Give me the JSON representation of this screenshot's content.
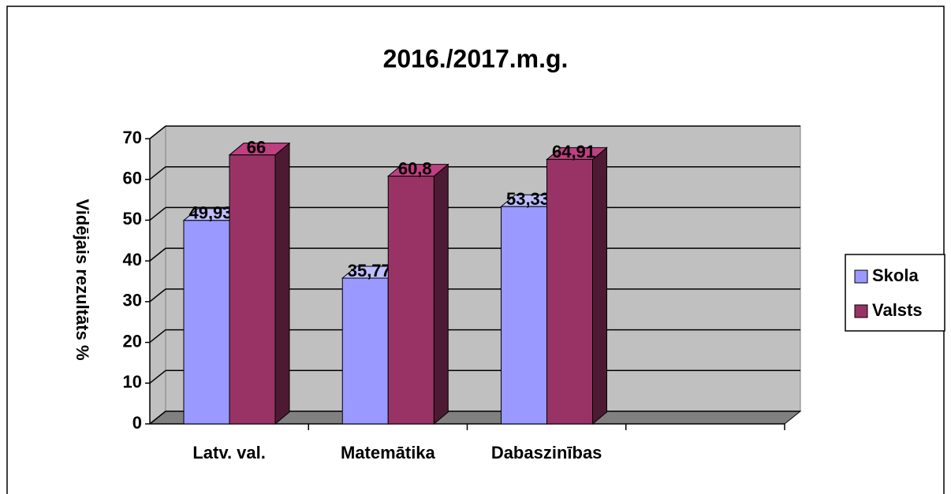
{
  "chart_data": {
    "type": "bar3d",
    "title": "2016./2017.m.g.",
    "y_label": "Vidējais rezultāts %",
    "categories": [
      "Latv. val.",
      "Matemātika",
      "Dabaszinības",
      null
    ],
    "series": [
      {
        "name": "Skola",
        "color": "#9999ff",
        "values": [
          49.93,
          35.77,
          53.33,
          null
        ],
        "value_labels": [
          "49,93",
          "35,77",
          "53,33",
          null
        ]
      },
      {
        "name": "Valsts",
        "color": "#993366",
        "values": [
          66,
          60.8,
          64.91,
          null
        ],
        "value_labels": [
          "66",
          "60,8",
          "64,91",
          null
        ]
      }
    ],
    "ylim": [
      0,
      70
    ],
    "yticks": [
      0,
      10,
      20,
      30,
      40,
      50,
      60,
      70
    ],
    "grid": true,
    "legend": "right"
  }
}
